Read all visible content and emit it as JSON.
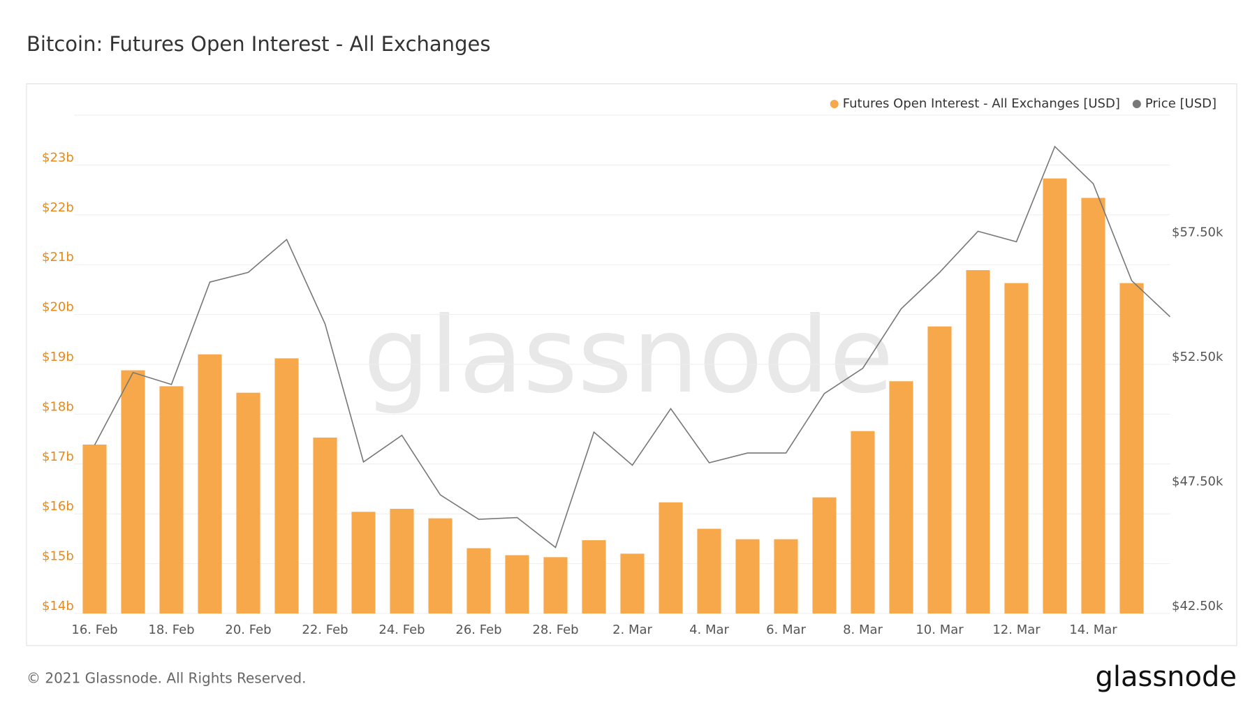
{
  "chart_data": {
    "type": "bar",
    "title": "Bitcoin: Futures Open Interest - All Exchanges",
    "watermark": "glassnode",
    "footer": "© 2021 Glassnode. All Rights Reserved.",
    "logo": "glassnode",
    "categories": [
      "16. Feb",
      null,
      "18. Feb",
      null,
      "20. Feb",
      null,
      "22. Feb",
      null,
      "24. Feb",
      null,
      "26. Feb",
      null,
      "28. Feb",
      null,
      "2. Mar",
      null,
      "4. Mar",
      null,
      "6. Mar",
      null,
      "8. Mar",
      null,
      "10. Mar",
      null,
      "12. Mar",
      null,
      "14. Mar",
      null,
      null
    ],
    "series": [
      {
        "name": "Futures Open Interest - All Exchanges [USD]",
        "type": "bar",
        "color": "#f7a84a",
        "values": [
          17390000000,
          18880000000,
          18560000000,
          19200000000,
          18430000000,
          19120000000,
          17530000000,
          16040000000,
          16100000000,
          15910000000,
          15310000000,
          15170000000,
          15130000000,
          15470000000,
          15200000000,
          16230000000,
          15700000000,
          15490000000,
          15490000000,
          16330000000,
          17660000000,
          18660000000,
          19760000000,
          20890000000,
          20630000000,
          22730000000,
          22340000000,
          20630000000,
          null
        ]
      },
      {
        "name": "Price [USD]",
        "type": "line",
        "axis": "y2",
        "color": "#777777",
        "values": [
          49260,
          52170,
          51690,
          55800,
          56190,
          57510,
          54120,
          48580,
          49650,
          47260,
          46280,
          46350,
          45150,
          49780,
          48450,
          50720,
          48550,
          48940,
          48940,
          51330,
          52340,
          54730,
          56190,
          57840,
          57420,
          61240,
          59750,
          55860,
          54410
        ]
      }
    ],
    "ylim": [
      14000000000,
      24000000000
    ],
    "yticks": [
      {
        "value": 14000000000,
        "label": "$14b"
      },
      {
        "value": 15000000000,
        "label": "$15b"
      },
      {
        "value": 16000000000,
        "label": "$16b"
      },
      {
        "value": 17000000000,
        "label": "$17b"
      },
      {
        "value": 18000000000,
        "label": "$18b"
      },
      {
        "value": 19000000000,
        "label": "$19b"
      },
      {
        "value": 20000000000,
        "label": "$20b"
      },
      {
        "value": 21000000000,
        "label": "$21b"
      },
      {
        "value": 22000000000,
        "label": "$22b"
      },
      {
        "value": 23000000000,
        "label": "$23b"
      }
    ],
    "y2lim": [
      42500,
      62500
    ],
    "y2ticks": [
      {
        "value": 42500,
        "label": "$42.50k"
      },
      {
        "value": 47500,
        "label": "$47.50k"
      },
      {
        "value": 52500,
        "label": "$52.50k"
      },
      {
        "value": 57500,
        "label": "$57.50k"
      }
    ],
    "grid": true,
    "legend": "top-right"
  }
}
